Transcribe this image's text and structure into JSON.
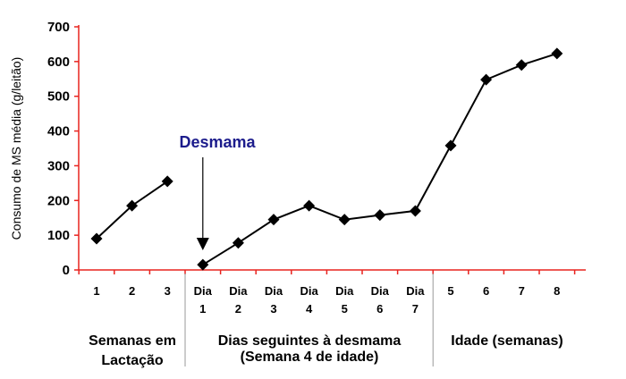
{
  "chart_data": {
    "type": "line",
    "ylabel": "Consumo de MS média  (g/leitão)",
    "ylim": [
      0,
      700
    ],
    "yticks": [
      "0",
      "100",
      "200",
      "300",
      "400",
      "500",
      "600",
      "700"
    ],
    "grid": false,
    "categories": [
      [
        "1"
      ],
      [
        "2"
      ],
      [
        "3"
      ],
      [
        "Dia",
        "1"
      ],
      [
        "Dia",
        "2"
      ],
      [
        "Dia",
        "3"
      ],
      [
        "Dia",
        "4"
      ],
      [
        "Dia",
        "5"
      ],
      [
        "Dia",
        "6"
      ],
      [
        "Dia",
        "7"
      ],
      [
        "5"
      ],
      [
        "6"
      ],
      [
        "7"
      ],
      [
        "8"
      ]
    ],
    "segments": [
      {
        "values": [
          90,
          185,
          255
        ],
        "start_index": 0
      },
      {
        "values": [
          15,
          78,
          145,
          185,
          145,
          158,
          170,
          358,
          548,
          590,
          623
        ],
        "start_index": 3
      }
    ],
    "groups": [
      {
        "lines": [
          "Semanas em",
          "Lactação"
        ]
      },
      {
        "lines": [
          "Dias seguintes à desmama",
          "(Semana 4 de idade)"
        ]
      },
      {
        "lines": [
          "Idade (semanas)"
        ]
      }
    ],
    "annotation": {
      "text": "Desmama",
      "category_index": 3
    },
    "colors": {
      "line": "#000000",
      "axis": "#e8231f",
      "annotation": "#1c1c8c",
      "separator": "#999999"
    }
  }
}
